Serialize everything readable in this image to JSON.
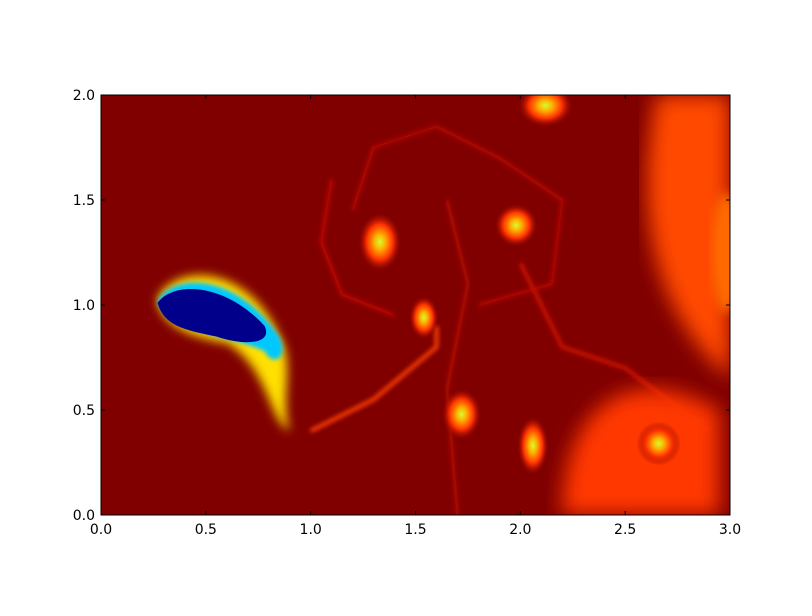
{
  "chart_data": {
    "type": "heatmap",
    "colormap": "jet",
    "title": "",
    "xlabel": "",
    "ylabel": "",
    "xlim": [
      0.0,
      3.0
    ],
    "ylim": [
      0.0,
      2.0
    ],
    "xticks": [
      "0.0",
      "0.5",
      "1.0",
      "1.5",
      "2.0",
      "2.5",
      "3.0"
    ],
    "yticks": [
      "0.0",
      "0.5",
      "1.0",
      "1.5",
      "2.0"
    ],
    "grid": false,
    "colors": {
      "background": "#800000",
      "low": "#00008b",
      "high": "#800000"
    }
  }
}
